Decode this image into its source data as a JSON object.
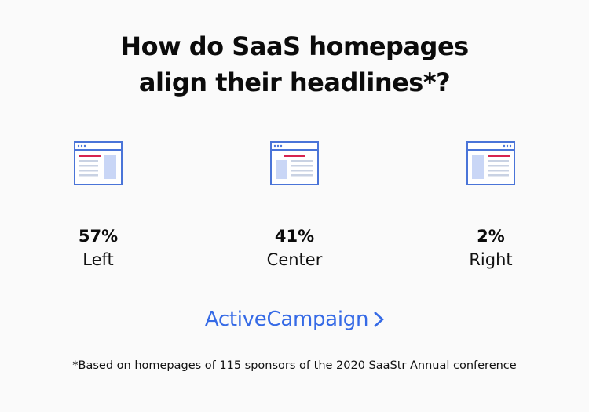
{
  "title": {
    "line1": "How do SaaS homepages",
    "line2": "align their headlines*?"
  },
  "chart_data": {
    "type": "bar",
    "categories": [
      "Left",
      "Center",
      "Right"
    ],
    "values": [
      57,
      41,
      2
    ],
    "value_labels": [
      "57%",
      "41%",
      "2%"
    ],
    "unit": "%",
    "title": "How do SaaS homepages align their headlines*?"
  },
  "colors": {
    "icon_blue": "#4a74d8",
    "icon_light_blue": "#c9d6f6",
    "icon_red": "#d6244f",
    "icon_gray": "#c9d2e3",
    "brand_blue": "#356ae6"
  },
  "icons": [
    "left-aligned-page-icon",
    "center-aligned-page-icon",
    "right-aligned-page-icon",
    "chevron-right-icon"
  ],
  "brand": {
    "name": "ActiveCampaign"
  },
  "footnote": "*Based on homepages of 115 sponsors of the 2020 SaaStr Annual conference"
}
